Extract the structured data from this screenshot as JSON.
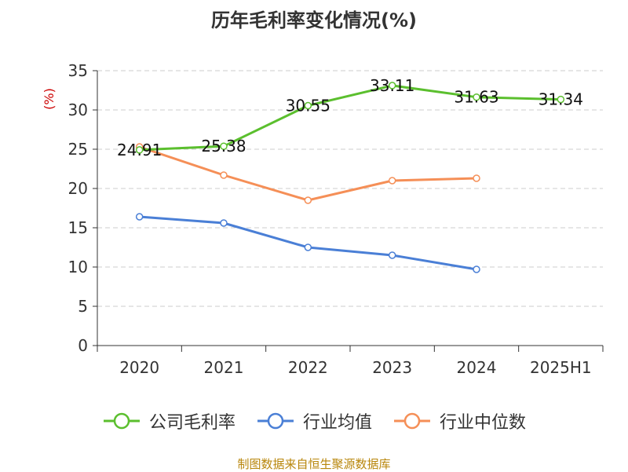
{
  "chart_data": {
    "type": "line",
    "title": "历年毛利率变化情况(%)",
    "ylabel": "(%)",
    "xlabel": "",
    "categories": [
      "2020",
      "2021",
      "2022",
      "2023",
      "2024",
      "2025H1"
    ],
    "ylim": [
      0,
      35
    ],
    "yticks": [
      0,
      5,
      10,
      15,
      20,
      25,
      30,
      35
    ],
    "grid": true,
    "legend_position": "bottom",
    "series": [
      {
        "name": "公司毛利率",
        "color": "#5bbf2e",
        "show_labels": true,
        "values": [
          24.91,
          25.38,
          30.55,
          33.11,
          31.63,
          31.34
        ]
      },
      {
        "name": "行业均值",
        "color": "#4a7fd6",
        "show_labels": false,
        "values": [
          16.4,
          15.6,
          12.5,
          11.5,
          9.7,
          null
        ]
      },
      {
        "name": "行业中位数",
        "color": "#f58f57",
        "show_labels": false,
        "values": [
          25.3,
          21.7,
          18.5,
          21.0,
          21.3,
          null
        ]
      }
    ]
  },
  "source_text": "制图数据来自恒生聚源数据库"
}
